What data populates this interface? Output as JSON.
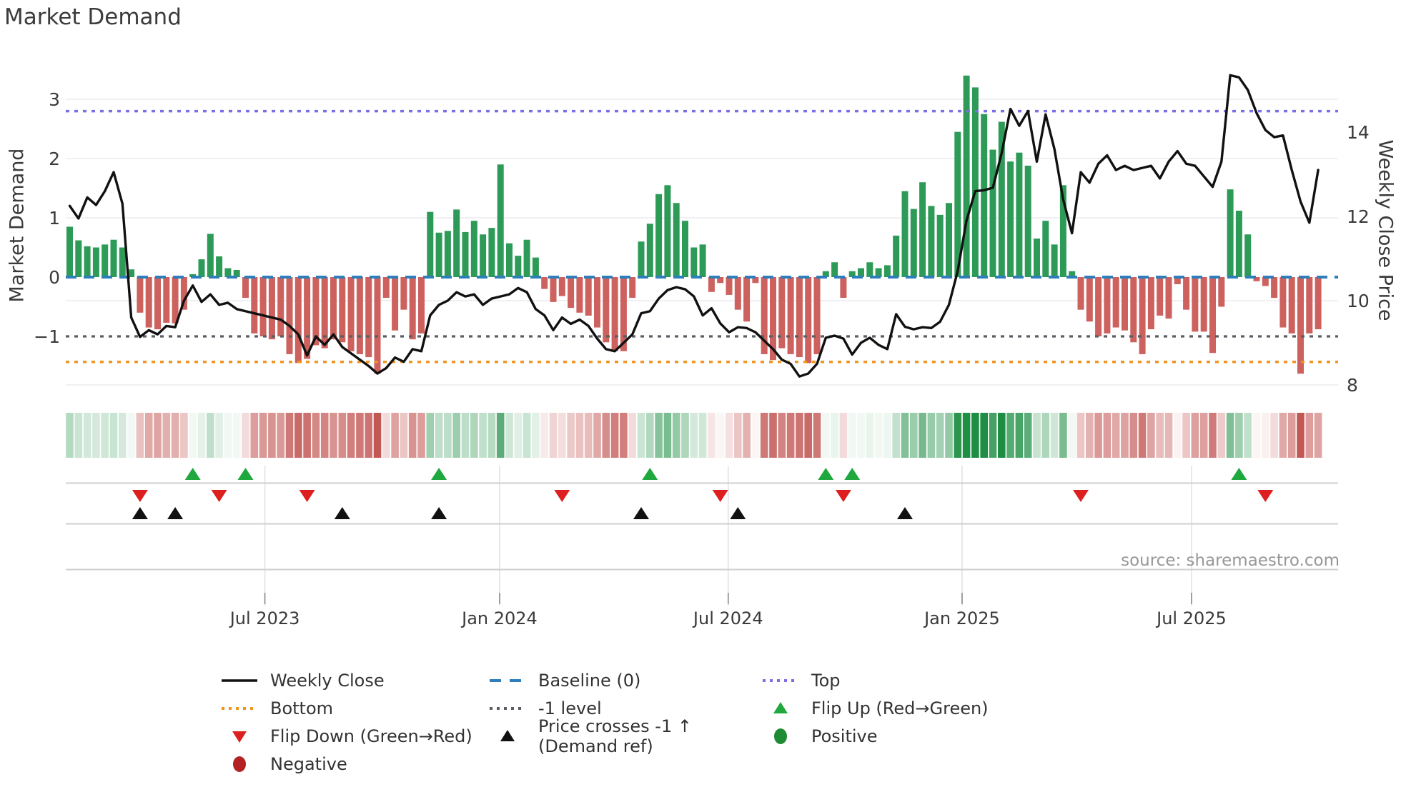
{
  "chart_data": {
    "type": "bar",
    "title": "Market Demand",
    "source": "source: sharemaestro.com",
    "y_left": {
      "title": "Market Demand",
      "ticks": [
        {
          "label": "3",
          "v": 3
        },
        {
          "label": "2",
          "v": 2
        },
        {
          "label": "1",
          "v": 1
        },
        {
          "label": "0",
          "v": 0
        },
        {
          "label": "−1",
          "v": -1
        }
      ]
    },
    "y_right": {
      "title": "Weekly Close Price",
      "ticks": [
        {
          "label": "14",
          "p": 14
        },
        {
          "label": "12",
          "p": 12
        },
        {
          "label": "10",
          "p": 10
        },
        {
          "label": "8",
          "p": 8
        }
      ]
    },
    "x_axis": {
      "ticks": [
        {
          "label": "Jul 2023",
          "week": 22.2
        },
        {
          "label": "Jan 2024",
          "week": 48.9
        },
        {
          "label": "Jul 2024",
          "week": 74.9
        },
        {
          "label": "Jan 2025",
          "week": 101.5
        },
        {
          "label": "Jul 2025",
          "week": 127.6
        }
      ]
    },
    "reference_lines": {
      "baseline": 0,
      "top": 2.8,
      "minus_one": -1,
      "bottom": -1.43
    },
    "series": [
      {
        "name": "Market Demand (weekly bars)",
        "values": [
          0.85,
          0.62,
          0.52,
          0.5,
          0.55,
          0.63,
          0.5,
          0.13,
          -0.6,
          -0.85,
          -0.88,
          -0.77,
          -0.78,
          -0.55,
          0.05,
          0.3,
          0.73,
          0.35,
          0.15,
          0.12,
          -0.35,
          -0.95,
          -1.0,
          -1.05,
          -1.0,
          -1.3,
          -1.45,
          -1.38,
          -1.15,
          -1.2,
          -1.05,
          -1.1,
          -1.25,
          -1.3,
          -1.35,
          -1.63,
          -0.35,
          -0.9,
          -0.55,
          -1.05,
          -0.95,
          1.1,
          0.75,
          0.78,
          1.14,
          0.76,
          0.95,
          0.72,
          0.83,
          1.9,
          0.57,
          0.36,
          0.63,
          0.33,
          -0.2,
          -0.42,
          -0.32,
          -0.52,
          -0.6,
          -0.65,
          -0.85,
          -1.1,
          -1.25,
          -1.25,
          -0.35,
          0.6,
          0.9,
          1.4,
          1.55,
          1.25,
          0.95,
          0.5,
          0.55,
          -0.25,
          -0.1,
          -0.3,
          -0.55,
          -0.75,
          -0.1,
          -1.3,
          -1.4,
          -1.2,
          -1.3,
          -1.35,
          -1.45,
          -1.3,
          0.1,
          0.25,
          -0.35,
          0.1,
          0.15,
          0.25,
          0.15,
          0.2,
          0.7,
          1.45,
          1.15,
          1.6,
          1.2,
          1.05,
          1.25,
          2.45,
          3.4,
          3.2,
          2.75,
          2.15,
          2.62,
          1.95,
          2.1,
          1.88,
          0.65,
          0.95,
          0.55,
          1.55,
          0.1,
          -0.55,
          -0.75,
          -1.0,
          -0.95,
          -0.85,
          -0.9,
          -1.1,
          -1.3,
          -0.88,
          -0.65,
          -0.7,
          -0.12,
          -0.55,
          -0.92,
          -0.92,
          -1.28,
          -0.5,
          1.48,
          1.12,
          0.72,
          -0.07,
          -0.15,
          -0.35,
          -0.85,
          -0.95,
          -1.63,
          -0.95,
          -0.88
        ]
      },
      {
        "name": "Weekly Close",
        "values": [
          12.25,
          11.95,
          12.45,
          12.27,
          12.6,
          13.05,
          12.3,
          9.6,
          9.14,
          9.3,
          9.2,
          9.4,
          9.37,
          10.0,
          10.36,
          9.97,
          10.15,
          9.9,
          9.95,
          9.8,
          9.75,
          9.7,
          9.65,
          9.6,
          9.55,
          9.4,
          9.2,
          8.7,
          9.15,
          8.95,
          9.2,
          8.9,
          8.75,
          8.6,
          8.45,
          8.27,
          8.4,
          8.65,
          8.55,
          8.85,
          8.8,
          9.65,
          9.9,
          10.0,
          10.2,
          10.1,
          10.15,
          9.9,
          10.05,
          10.1,
          10.15,
          10.3,
          10.2,
          9.8,
          9.65,
          9.3,
          9.6,
          9.45,
          9.55,
          9.4,
          9.1,
          8.85,
          8.8,
          9.0,
          9.2,
          9.7,
          9.75,
          10.05,
          10.25,
          10.32,
          10.27,
          10.1,
          9.65,
          9.82,
          9.46,
          9.25,
          9.37,
          9.35,
          9.25,
          9.05,
          8.85,
          8.6,
          8.5,
          8.2,
          8.27,
          8.5,
          9.12,
          9.17,
          9.1,
          8.72,
          9.0,
          9.12,
          8.95,
          8.85,
          9.68,
          9.38,
          9.32,
          9.37,
          9.35,
          9.5,
          9.9,
          10.7,
          11.9,
          12.6,
          12.62,
          12.68,
          13.5,
          14.55,
          14.15,
          14.5,
          13.3,
          14.42,
          13.6,
          12.4,
          11.6,
          13.05,
          12.8,
          13.25,
          13.45,
          13.1,
          13.2,
          13.1,
          13.15,
          13.2,
          12.9,
          13.3,
          13.55,
          13.25,
          13.2,
          12.95,
          12.7,
          13.3,
          15.35,
          15.3,
          15.0,
          14.45,
          14.05,
          13.88,
          13.92,
          13.1,
          12.35,
          11.85,
          13.1
        ]
      }
    ],
    "markers": {
      "flip_up_weeks": [
        14,
        20,
        42,
        66,
        86,
        89,
        133
      ],
      "flip_down_weeks": [
        8,
        17,
        27,
        56,
        74,
        88,
        115,
        136
      ],
      "price_cross_weeks": [
        8,
        12,
        31,
        42,
        65,
        76,
        95
      ]
    },
    "legend": [
      {
        "id": "weekly-close",
        "label": "Weekly Close",
        "swatch": "line",
        "color": "#111111"
      },
      {
        "id": "baseline-0",
        "label": "Baseline (0)",
        "swatch": "dashed",
        "color": "#2e7ebb"
      },
      {
        "id": "top",
        "label": "Top",
        "swatch": "dotted",
        "color": "#7b6fe8"
      },
      {
        "id": "bottom",
        "label": "Bottom",
        "swatch": "dotted",
        "color": "#f0941f"
      },
      {
        "id": "minus-1-level",
        "label": "-1 level",
        "swatch": "dotted",
        "color": "#5a5f66"
      },
      {
        "id": "flip-up",
        "label": "Flip Up (Red→Green)",
        "swatch": "triangle-up",
        "color": "#1fa83e"
      },
      {
        "id": "flip-down",
        "label": "Flip Down (Green→Red)",
        "swatch": "triangle-down",
        "color": "#dd1f1f"
      },
      {
        "id": "price-crosses",
        "label": "Price crosses -1 ↑ (Demand ref)",
        "swatch": "triangle-up",
        "color": "#111111"
      },
      {
        "id": "positive",
        "label": "Positive",
        "swatch": "circle",
        "color": "#1d8a34"
      },
      {
        "id": "negative",
        "label": "Negative",
        "swatch": "circle",
        "color": "#b22222"
      }
    ],
    "colors": {
      "bar_positive": "#2d9b57",
      "bar_negative": "#cc615e",
      "price_line": "#111111",
      "baseline": "#2e7ebb",
      "top_line": "#7b6fe8",
      "bottom_line": "#f0941f",
      "minus_one_line": "#5a5f66",
      "flip_up": "#1fa83e",
      "flip_down": "#dd1f1f",
      "price_cross": "#111111",
      "heat_pos_max": "#1e8e44",
      "heat_neg_max": "#c0504d"
    }
  }
}
